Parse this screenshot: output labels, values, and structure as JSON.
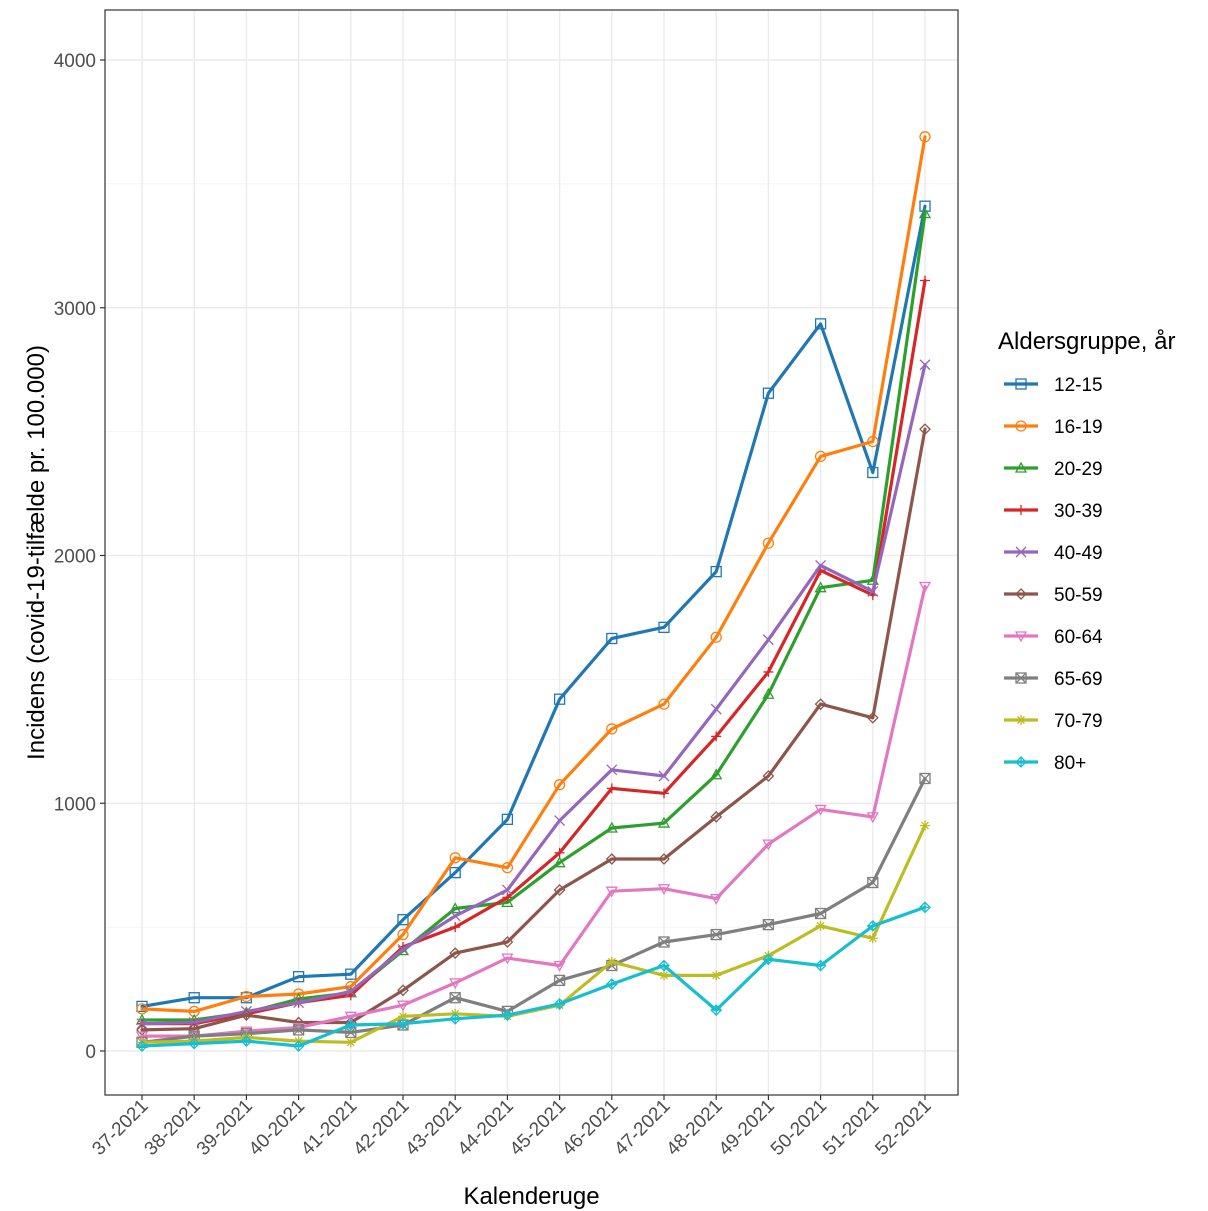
{
  "chart_data": {
    "type": "line",
    "title": "",
    "xlabel": "Kalenderuge",
    "ylabel": "Incidens (covid-19-tilfælde pr. 100.000)",
    "ylim": [
      -180,
      4200
    ],
    "yticks": [
      0,
      1000,
      2000,
      3000,
      4000
    ],
    "ytick_labels": [
      "0",
      "1000",
      "2000",
      "3000",
      "4000"
    ],
    "grid": true,
    "legend": {
      "title": "Aldersgruppe, år",
      "placement": "right"
    },
    "categories": [
      "37-2021",
      "38-2021",
      "39-2021",
      "40-2021",
      "41-2021",
      "42-2021",
      "43-2021",
      "44-2021",
      "45-2021",
      "46-2021",
      "47-2021",
      "48-2021",
      "49-2021",
      "50-2021",
      "51-2021",
      "52-2021"
    ],
    "series": [
      {
        "name": "12-15",
        "color": "#1f77b4",
        "marker": "square",
        "values": [
          180,
          215,
          215,
          300,
          310,
          530,
          720,
          935,
          1420,
          1665,
          1710,
          1935,
          2655,
          2935,
          2335,
          3410
        ]
      },
      {
        "name": "16-19",
        "color": "#ff7f0e",
        "marker": "circle",
        "values": [
          170,
          160,
          220,
          230,
          260,
          470,
          780,
          740,
          1075,
          1300,
          1400,
          1670,
          2050,
          2400,
          2460,
          3690
        ]
      },
      {
        "name": "20-29",
        "color": "#2ca02c",
        "marker": "triangle",
        "values": [
          125,
          125,
          155,
          210,
          235,
          405,
          575,
          600,
          760,
          900,
          920,
          1115,
          1440,
          1870,
          1900,
          3380
        ]
      },
      {
        "name": "30-39",
        "color": "#d62728",
        "marker": "plus",
        "values": [
          110,
          110,
          150,
          195,
          225,
          420,
          500,
          620,
          800,
          1060,
          1040,
          1270,
          1530,
          1940,
          1840,
          3110
        ]
      },
      {
        "name": "40-49",
        "color": "#9467bd",
        "marker": "cross",
        "values": [
          110,
          115,
          160,
          195,
          240,
          410,
          545,
          650,
          930,
          1135,
          1110,
          1380,
          1660,
          1960,
          1855,
          2770
        ]
      },
      {
        "name": "50-59",
        "color": "#8c564b",
        "marker": "diamond",
        "values": [
          85,
          90,
          145,
          115,
          115,
          245,
          395,
          440,
          650,
          775,
          775,
          945,
          1110,
          1400,
          1345,
          2510
        ]
      },
      {
        "name": "60-64",
        "color": "#e377c2",
        "marker": "triangle-down",
        "values": [
          60,
          60,
          80,
          95,
          140,
          185,
          275,
          375,
          345,
          645,
          655,
          615,
          835,
          975,
          945,
          1875
        ]
      },
      {
        "name": "65-69",
        "color": "#7f7f7f",
        "marker": "boxcross",
        "values": [
          35,
          60,
          70,
          85,
          75,
          105,
          215,
          160,
          285,
          345,
          440,
          470,
          510,
          555,
          680,
          1100
        ]
      },
      {
        "name": "70-79",
        "color": "#bcbd22",
        "marker": "asterisk",
        "values": [
          35,
          40,
          55,
          40,
          35,
          140,
          150,
          140,
          185,
          360,
          305,
          305,
          385,
          505,
          455,
          910
        ]
      },
      {
        "name": "80+",
        "color": "#17becf",
        "marker": "diamond-plus",
        "values": [
          20,
          30,
          40,
          20,
          105,
          110,
          130,
          145,
          190,
          270,
          345,
          165,
          370,
          345,
          505,
          580
        ]
      }
    ]
  }
}
